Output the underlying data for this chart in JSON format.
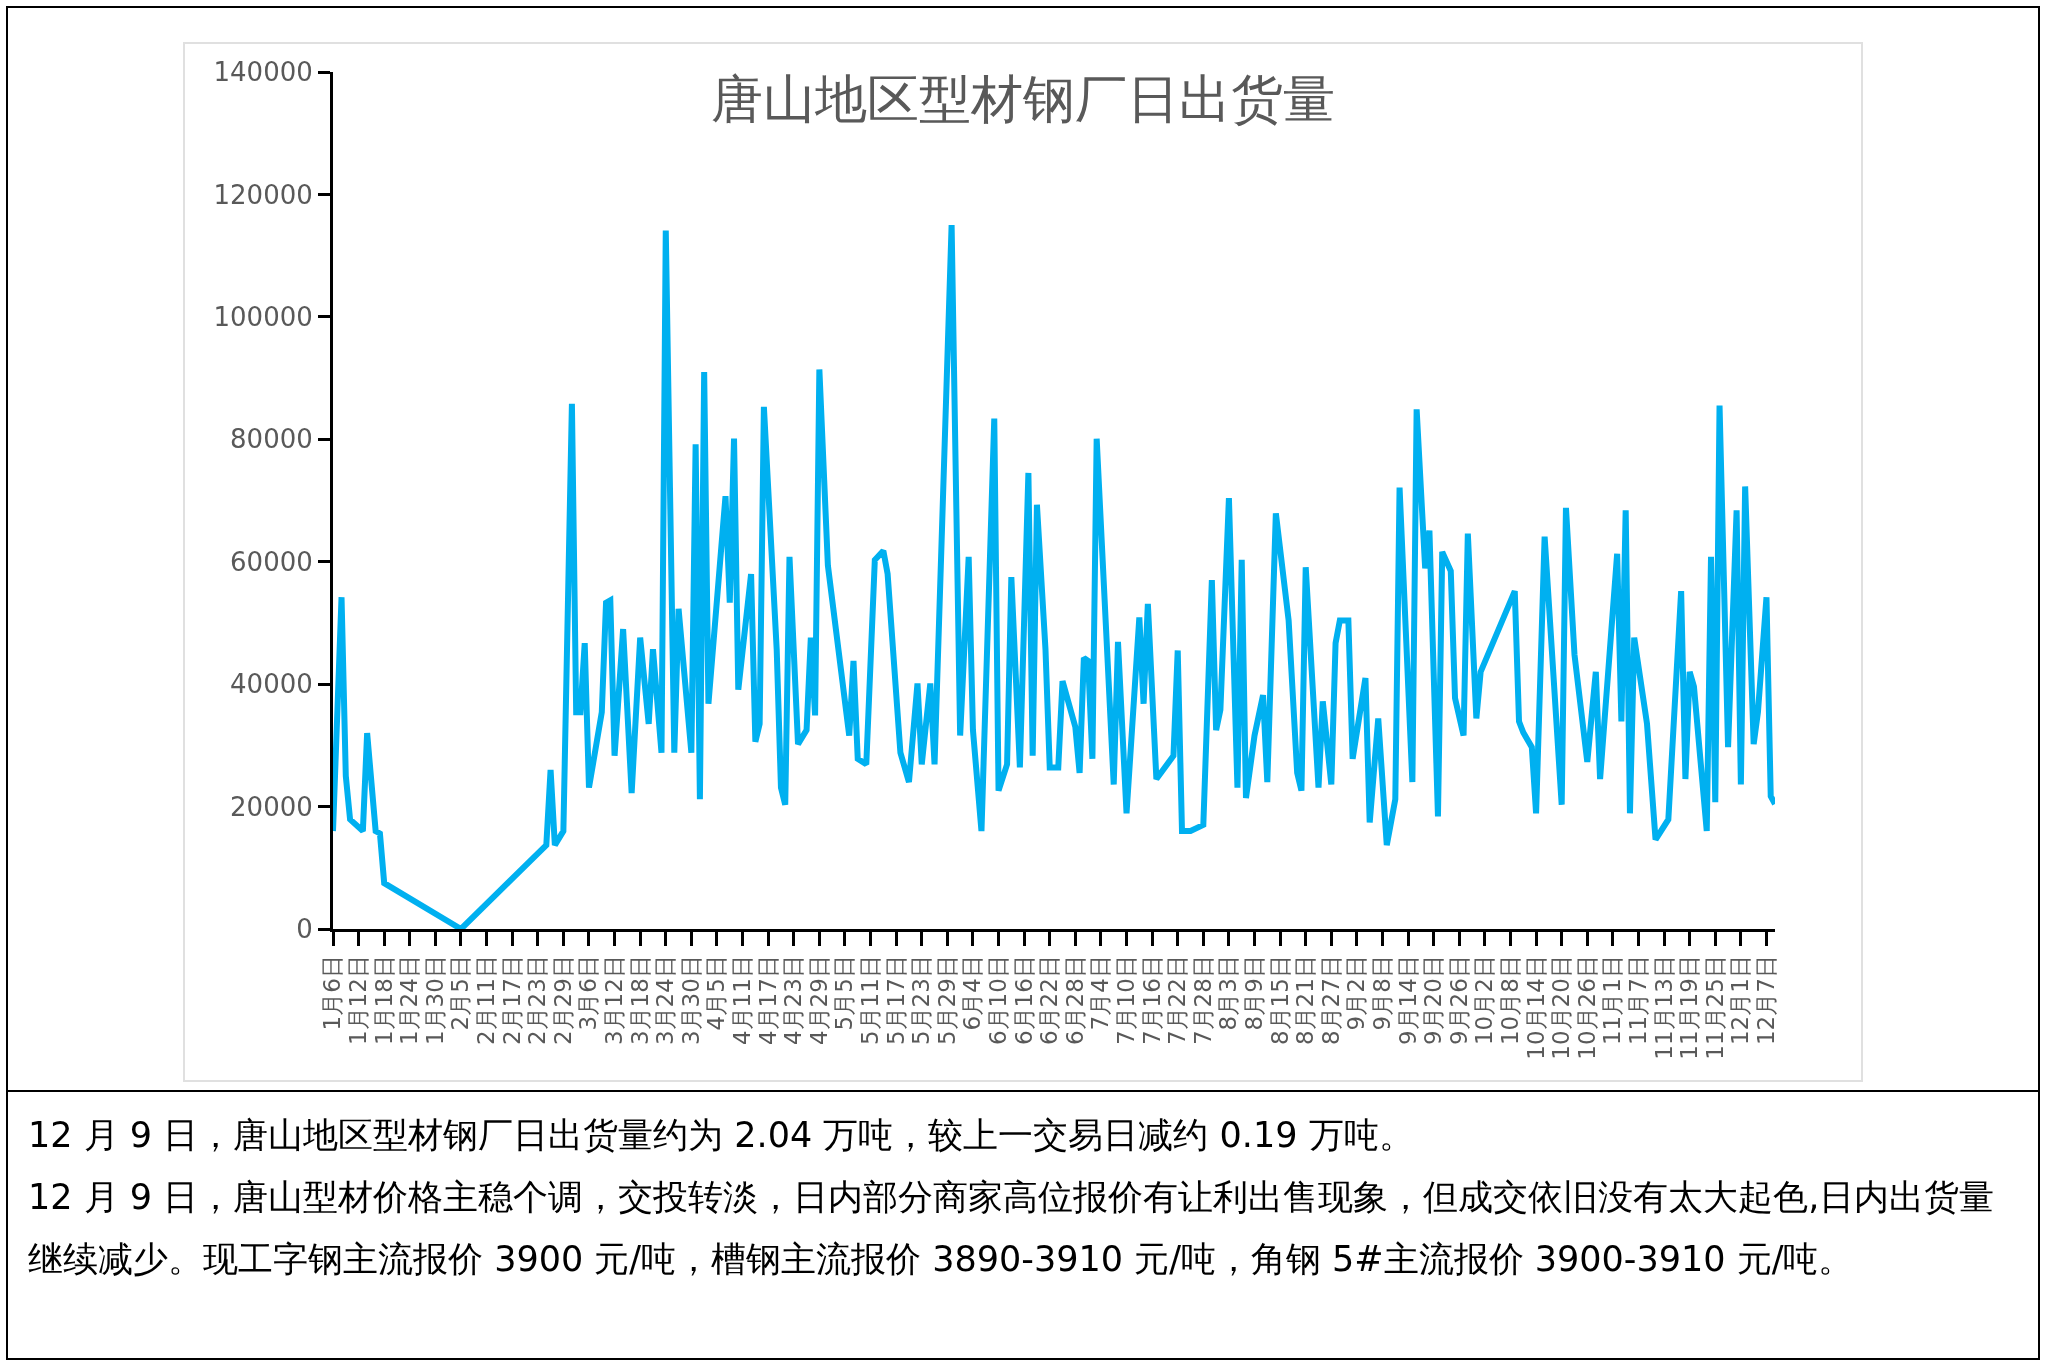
{
  "chart_data": {
    "type": "line",
    "title": "唐山地区型材钢厂日出货量",
    "x": [
      "--01-06",
      "--01-08",
      "--01-09",
      "--01-10",
      "--01-13",
      "--01-14",
      "--01-16",
      "--01-17",
      "--01-18",
      "--02-05",
      "--02-25",
      "--02-26",
      "--02-27",
      "--02-29",
      "--03-02",
      "--03-03",
      "--03-04",
      "--03-05",
      "--03-06",
      "--03-09",
      "--03-10",
      "--03-11",
      "--03-12",
      "--03-14",
      "--03-16",
      "--03-18",
      "--03-20",
      "--03-21",
      "--03-23",
      "--03-24",
      "--03-26",
      "--03-27",
      "--03-30",
      "--03-31",
      "--04-01",
      "--04-02",
      "--04-03",
      "--04-07",
      "--04-08",
      "--04-09",
      "--04-10",
      "--04-13",
      "--04-14",
      "--04-15",
      "--04-16",
      "--04-19",
      "--04-20",
      "--04-21",
      "--04-22",
      "--04-24",
      "--04-26",
      "--04-27",
      "--04-28",
      "--04-29",
      "--05-01",
      "--05-06",
      "--05-07",
      "--05-08",
      "--05-10",
      "--05-12",
      "--05-14",
      "--05-15",
      "--05-18",
      "--05-20",
      "--05-22",
      "--05-23",
      "--05-25",
      "--05-26",
      "--05-30",
      "--06-01",
      "--06-03",
      "--06-04",
      "--06-06",
      "--06-09",
      "--06-10",
      "--06-12",
      "--06-13",
      "--06-15",
      "--06-17",
      "--06-18",
      "--06-19",
      "--06-21",
      "--06-22",
      "--06-24",
      "--06-25",
      "--06-28",
      "--06-29",
      "--06-30",
      "--07-01",
      "--07-02",
      "--07-03",
      "--07-07",
      "--07-08",
      "--07-10",
      "--07-13",
      "--07-14",
      "--07-15",
      "--07-17",
      "--07-21",
      "--07-22",
      "--07-23",
      "--07-25",
      "--07-28",
      "--07-30",
      "--07-31",
      "--08-01",
      "--08-03",
      "--08-05",
      "--08-06",
      "--08-07",
      "--08-09",
      "--08-11",
      "--08-12",
      "--08-14",
      "--08-17",
      "--08-19",
      "--08-20",
      "--08-21",
      "--08-24",
      "--08-25",
      "--08-27",
      "--08-28",
      "--08-29",
      "--08-31",
      "--09-01",
      "--09-04",
      "--09-05",
      "--09-07",
      "--09-09",
      "--09-11",
      "--09-12",
      "--09-15",
      "--09-16",
      "--09-18",
      "--09-19",
      "--09-21",
      "--09-22",
      "--09-24",
      "--09-25",
      "--09-27",
      "--09-28",
      "--09-30",
      "--10-01",
      "--10-09",
      "--10-10",
      "--10-11",
      "--10-13",
      "--10-14",
      "--10-16",
      "--10-20",
      "--10-21",
      "--10-23",
      "--10-26",
      "--10-28",
      "--10-29",
      "--11-02",
      "--11-03",
      "--11-04",
      "--11-05",
      "--11-06",
      "--11-09",
      "--11-11",
      "--11-14",
      "--11-17",
      "--11-18",
      "--11-19",
      "--11-20",
      "--11-23",
      "--11-24",
      "--11-25",
      "--11-26",
      "--11-28",
      "--11-30",
      "--12-01",
      "--12-02",
      "--12-04",
      "--12-05",
      "--12-07",
      "--12-08",
      "--12-09"
    ],
    "series": [
      {
        "color": "#00b0f0",
        "values": [
          16000,
          54200,
          25000,
          17900,
          16000,
          32000,
          16000,
          15600,
          7500,
          0,
          13700,
          26000,
          13700,
          16000,
          85800,
          35400,
          35400,
          46700,
          23100,
          35400,
          53300,
          53700,
          28300,
          49000,
          22200,
          47600,
          33500,
          45700,
          28800,
          114100,
          28800,
          52300,
          28800,
          79200,
          21200,
          91000,
          36800,
          70700,
          53300,
          80100,
          39100,
          58000,
          30600,
          33500,
          85300,
          45700,
          23100,
          20300,
          60800,
          30200,
          32500,
          47600,
          34900,
          91400,
          59400,
          31600,
          43800,
          27800,
          26900,
          60300,
          61800,
          58000,
          28800,
          24000,
          40100,
          26900,
          40100,
          26900,
          115000,
          31600,
          60800,
          32500,
          16000,
          83400,
          22600,
          26900,
          57500,
          26400,
          74500,
          28300,
          69300,
          45700,
          26400,
          26400,
          40500,
          33000,
          25500,
          44300,
          43800,
          27800,
          80100,
          23600,
          46900,
          18900,
          50900,
          36800,
          53100,
          24500,
          28300,
          45500,
          16000,
          16000,
          17000,
          57000,
          32500,
          35800,
          70400,
          23100,
          60300,
          21400,
          31600,
          38200,
          24000,
          67900,
          50400,
          25500,
          22600,
          59100,
          23100,
          37200,
          23600,
          46700,
          50400,
          50400,
          27800,
          41000,
          17400,
          34400,
          13700,
          21200,
          72100,
          24000,
          84900,
          58900,
          65100,
          18400,
          61600,
          58500,
          37700,
          31600,
          64600,
          34400,
          42000,
          55200,
          33900,
          32100,
          29700,
          18900,
          64100,
          20300,
          68800,
          44800,
          27300,
          42000,
          24500,
          61300,
          33900,
          68400,
          18900,
          47600,
          33500,
          14600,
          17900,
          55200,
          24500,
          42000,
          39600,
          16000,
          60800,
          20700,
          85500,
          29700,
          68400,
          23600,
          72300,
          30200,
          35400,
          54200,
          21700,
          20400
        ]
      }
    ],
    "xlim": [
      "--01-06",
      "--12-09"
    ],
    "xticks": [
      {
        "value": "--01-06",
        "label": "1月6日"
      },
      {
        "value": "--01-12",
        "label": "1月12日"
      },
      {
        "value": "--01-18",
        "label": "1月18日"
      },
      {
        "value": "--01-24",
        "label": "1月24日"
      },
      {
        "value": "--01-30",
        "label": "1月30日"
      },
      {
        "value": "--02-05",
        "label": "2月5日"
      },
      {
        "value": "--02-11",
        "label": "2月11日"
      },
      {
        "value": "--02-17",
        "label": "2月17日"
      },
      {
        "value": "--02-23",
        "label": "2月23日"
      },
      {
        "value": "--02-29",
        "label": "2月29日"
      },
      {
        "value": "--03-06",
        "label": "3月6日"
      },
      {
        "value": "--03-12",
        "label": "3月12日"
      },
      {
        "value": "--03-18",
        "label": "3月18日"
      },
      {
        "value": "--03-24",
        "label": "3月24日"
      },
      {
        "value": "--03-30",
        "label": "3月30日"
      },
      {
        "value": "--04-05",
        "label": "4月5日"
      },
      {
        "value": "--04-11",
        "label": "4月11日"
      },
      {
        "value": "--04-17",
        "label": "4月17日"
      },
      {
        "value": "--04-23",
        "label": "4月23日"
      },
      {
        "value": "--04-29",
        "label": "4月29日"
      },
      {
        "value": "--05-05",
        "label": "5月5日"
      },
      {
        "value": "--05-11",
        "label": "5月11日"
      },
      {
        "value": "--05-17",
        "label": "5月17日"
      },
      {
        "value": "--05-23",
        "label": "5月23日"
      },
      {
        "value": "--05-29",
        "label": "5月29日"
      },
      {
        "value": "--06-04",
        "label": "6月4日"
      },
      {
        "value": "--06-10",
        "label": "6月10日"
      },
      {
        "value": "--06-16",
        "label": "6月16日"
      },
      {
        "value": "--06-22",
        "label": "6月22日"
      },
      {
        "value": "--06-28",
        "label": "6月28日"
      },
      {
        "value": "--07-04",
        "label": "7月4日"
      },
      {
        "value": "--07-10",
        "label": "7月10日"
      },
      {
        "value": "--07-16",
        "label": "7月16日"
      },
      {
        "value": "--07-22",
        "label": "7月22日"
      },
      {
        "value": "--07-28",
        "label": "7月28日"
      },
      {
        "value": "--08-03",
        "label": "8月3日"
      },
      {
        "value": "--08-09",
        "label": "8月9日"
      },
      {
        "value": "--08-15",
        "label": "8月15日"
      },
      {
        "value": "--08-21",
        "label": "8月21日"
      },
      {
        "value": "--08-27",
        "label": "8月27日"
      },
      {
        "value": "--09-02",
        "label": "9月2日"
      },
      {
        "value": "--09-08",
        "label": "9月8日"
      },
      {
        "value": "--09-14",
        "label": "9月14日"
      },
      {
        "value": "--09-20",
        "label": "9月20日"
      },
      {
        "value": "--09-26",
        "label": "9月26日"
      },
      {
        "value": "--10-02",
        "label": "10月2日"
      },
      {
        "value": "--10-08",
        "label": "10月8日"
      },
      {
        "value": "--10-14",
        "label": "10月14日"
      },
      {
        "value": "--10-20",
        "label": "10月20日"
      },
      {
        "value": "--10-26",
        "label": "10月26日"
      },
      {
        "value": "--11-01",
        "label": "11月1日"
      },
      {
        "value": "--11-07",
        "label": "11月7日"
      },
      {
        "value": "--11-13",
        "label": "11月13日"
      },
      {
        "value": "--11-19",
        "label": "11月19日"
      },
      {
        "value": "--11-25",
        "label": "11月25日"
      },
      {
        "value": "--12-01",
        "label": "12月1日"
      },
      {
        "value": "--12-07",
        "label": "12月7日"
      }
    ],
    "ylim": [
      0,
      140000
    ],
    "yticks": [
      0,
      20000,
      40000,
      60000,
      80000,
      100000,
      120000,
      140000
    ],
    "grid": false,
    "marker": "none",
    "line_style": "solid",
    "annotations": [
      "12 月 9 日，唐山地区型材钢厂日出货量约为 2.04 万吨，较上一交易日减约 0.19 万吨。",
      "12 月 9 日，唐山型材价格主稳个调，交投转淡，日内部分商家高位报价有让利出售现象，但成交依旧没有太大起色,日内出货量继续减少。现工字钢主流报价 3900 元/吨，槽钢主流报价 3890-3910 元/吨，角钢 5#主流报价 3900-3910 元/吨。"
    ]
  }
}
